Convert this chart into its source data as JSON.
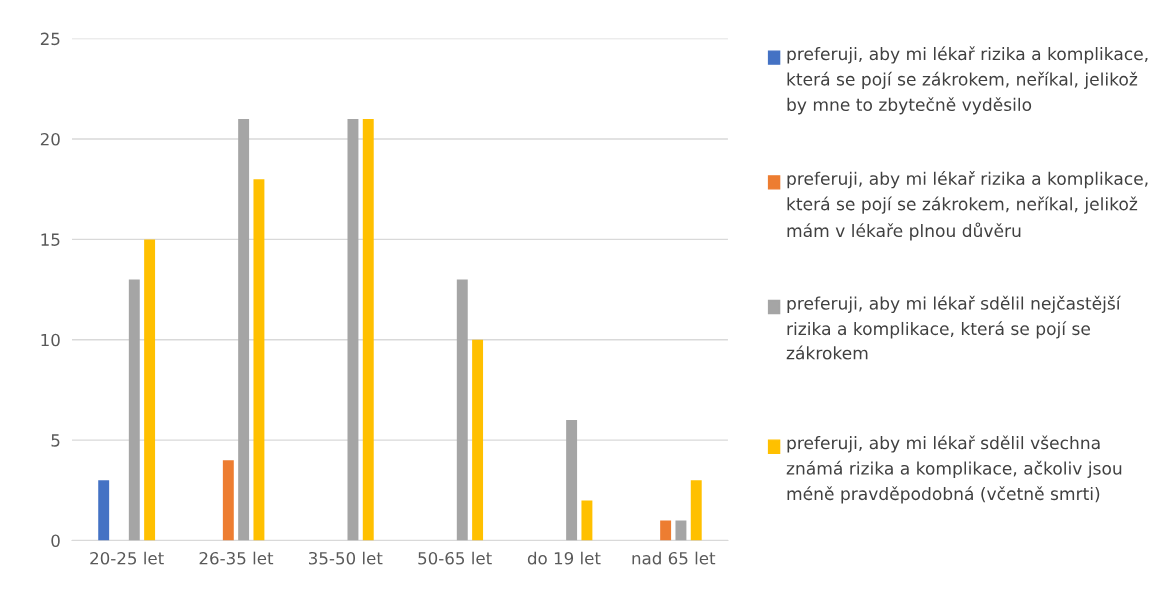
{
  "chart_data": {
    "type": "bar",
    "categories": [
      "20-25 let",
      "26-35 let",
      "35-50 let",
      "50-65 let",
      "do 19 let",
      "nad 65 let"
    ],
    "series": [
      {
        "name": "preferuji, aby mi lékař rizika a komplikace, která se pojí se zákrokem, neříkal, jelikož by mne to zbytečně vyděsilo",
        "color": "#4472c4",
        "values": [
          3,
          0,
          0,
          0,
          0,
          0
        ]
      },
      {
        "name": "preferuji, aby mi lékař rizika a komplikace, která se pojí se zákrokem, neříkal, jelikož mám v lékaře plnou důvěru",
        "color": "#ed7d31",
        "values": [
          0,
          4,
          0,
          0,
          0,
          1
        ]
      },
      {
        "name": "preferuji, aby mi lékař sdělil nejčastější rizika a komplikace, která se pojí se zákrokem",
        "color": "#a5a5a5",
        "values": [
          13,
          21,
          21,
          13,
          6,
          1
        ]
      },
      {
        "name": "preferuji, aby mi lékař sdělil všechna známá rizika a komplikace, ačkoliv jsou méně pravděpodobná (včetně smrti)",
        "color": "#ffc000",
        "values": [
          15,
          18,
          21,
          10,
          2,
          3
        ]
      }
    ],
    "ylim": [
      0,
      25
    ],
    "yticks": [
      0,
      5,
      10,
      15,
      20,
      25
    ],
    "grid": "y",
    "legend": "right"
  }
}
